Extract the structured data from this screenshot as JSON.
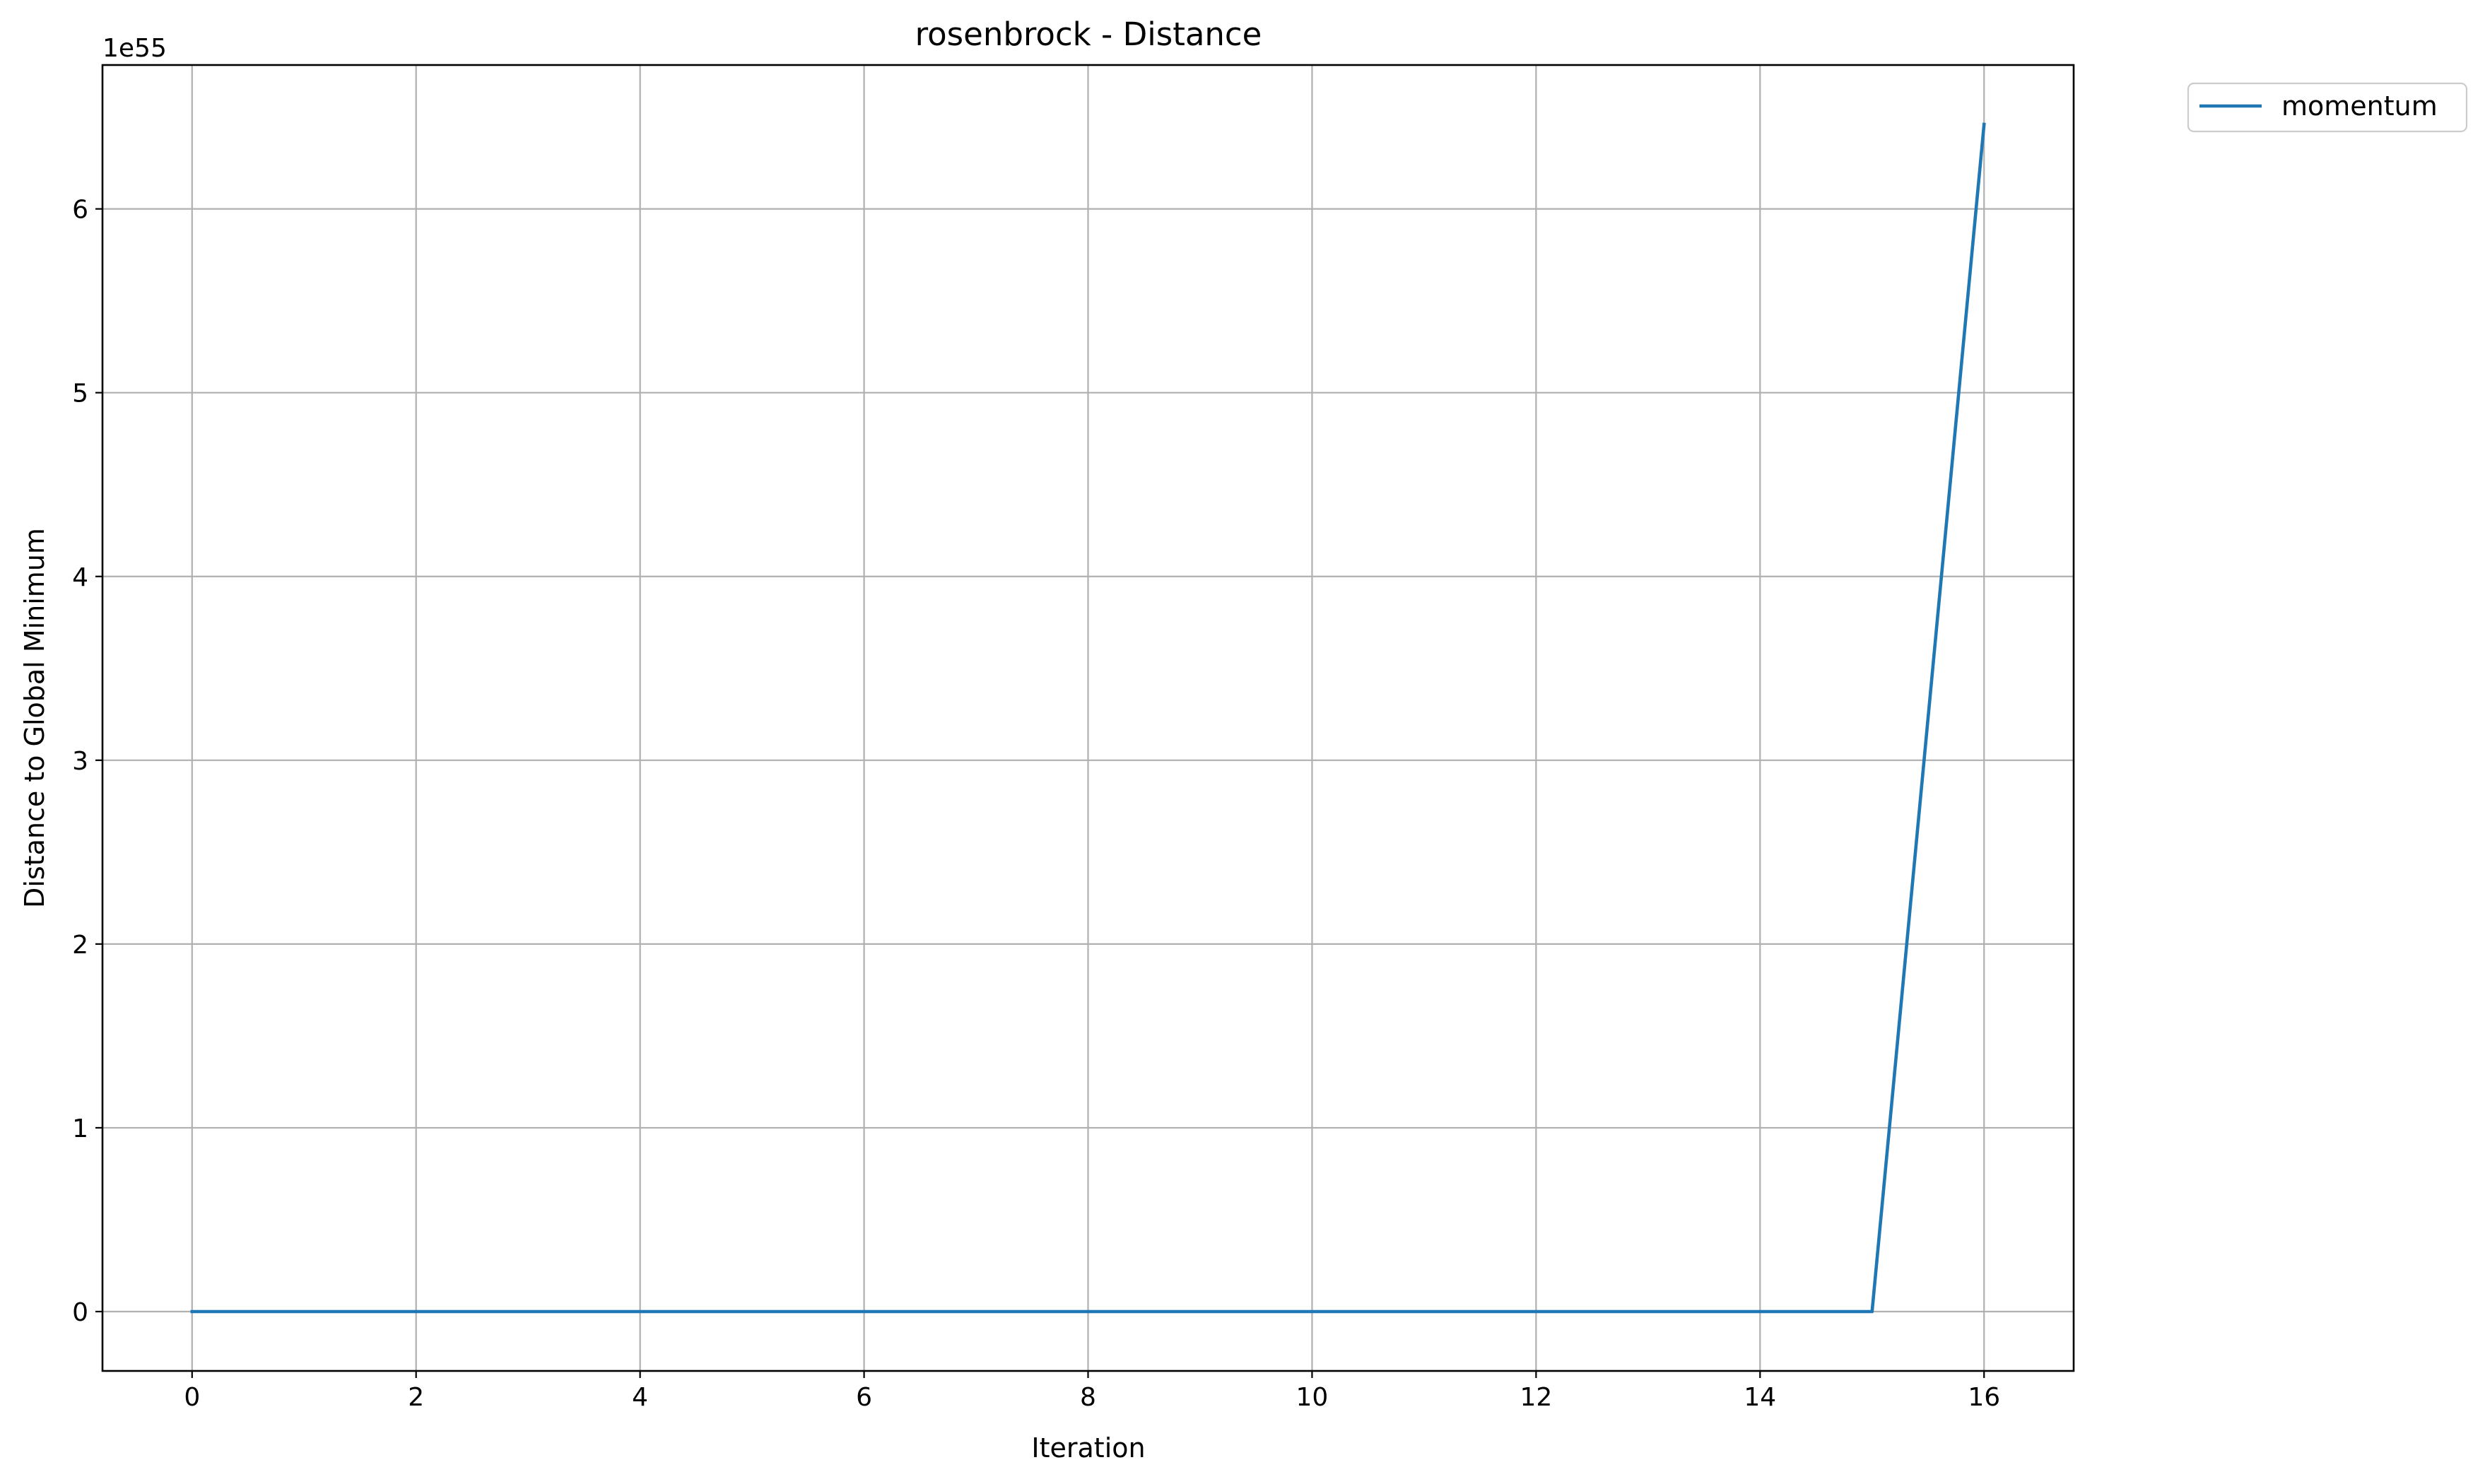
{
  "chart_data": {
    "type": "line",
    "title": "rosenbrock - Distance",
    "xlabel": "Iteration",
    "ylabel": "Distance to Global Minimum",
    "y_offset_text": "1e55",
    "y_scale_exponent": 55,
    "x": [
      0,
      1,
      2,
      3,
      4,
      5,
      6,
      7,
      8,
      9,
      10,
      11,
      12,
      13,
      14,
      15,
      16
    ],
    "series": [
      {
        "name": "momentum",
        "color": "#1f77b4",
        "values": [
          0,
          0,
          0,
          0,
          0,
          0,
          0,
          0,
          0,
          0,
          0,
          0,
          0,
          0,
          0,
          0,
          6.46
        ]
      }
    ],
    "xlim": [
      -0.8,
      16.8
    ],
    "ylim": [
      -0.323,
      6.783
    ],
    "x_ticks": [
      0,
      2,
      4,
      6,
      8,
      10,
      12,
      14,
      16
    ],
    "x_tick_labels": [
      "0",
      "2",
      "4",
      "6",
      "8",
      "10",
      "12",
      "14",
      "16"
    ],
    "y_ticks": [
      0,
      1,
      2,
      3,
      4,
      5,
      6
    ],
    "y_tick_labels": [
      "0",
      "1",
      "2",
      "3",
      "4",
      "5",
      "6"
    ],
    "grid": true,
    "legend": "outside-top-right"
  }
}
